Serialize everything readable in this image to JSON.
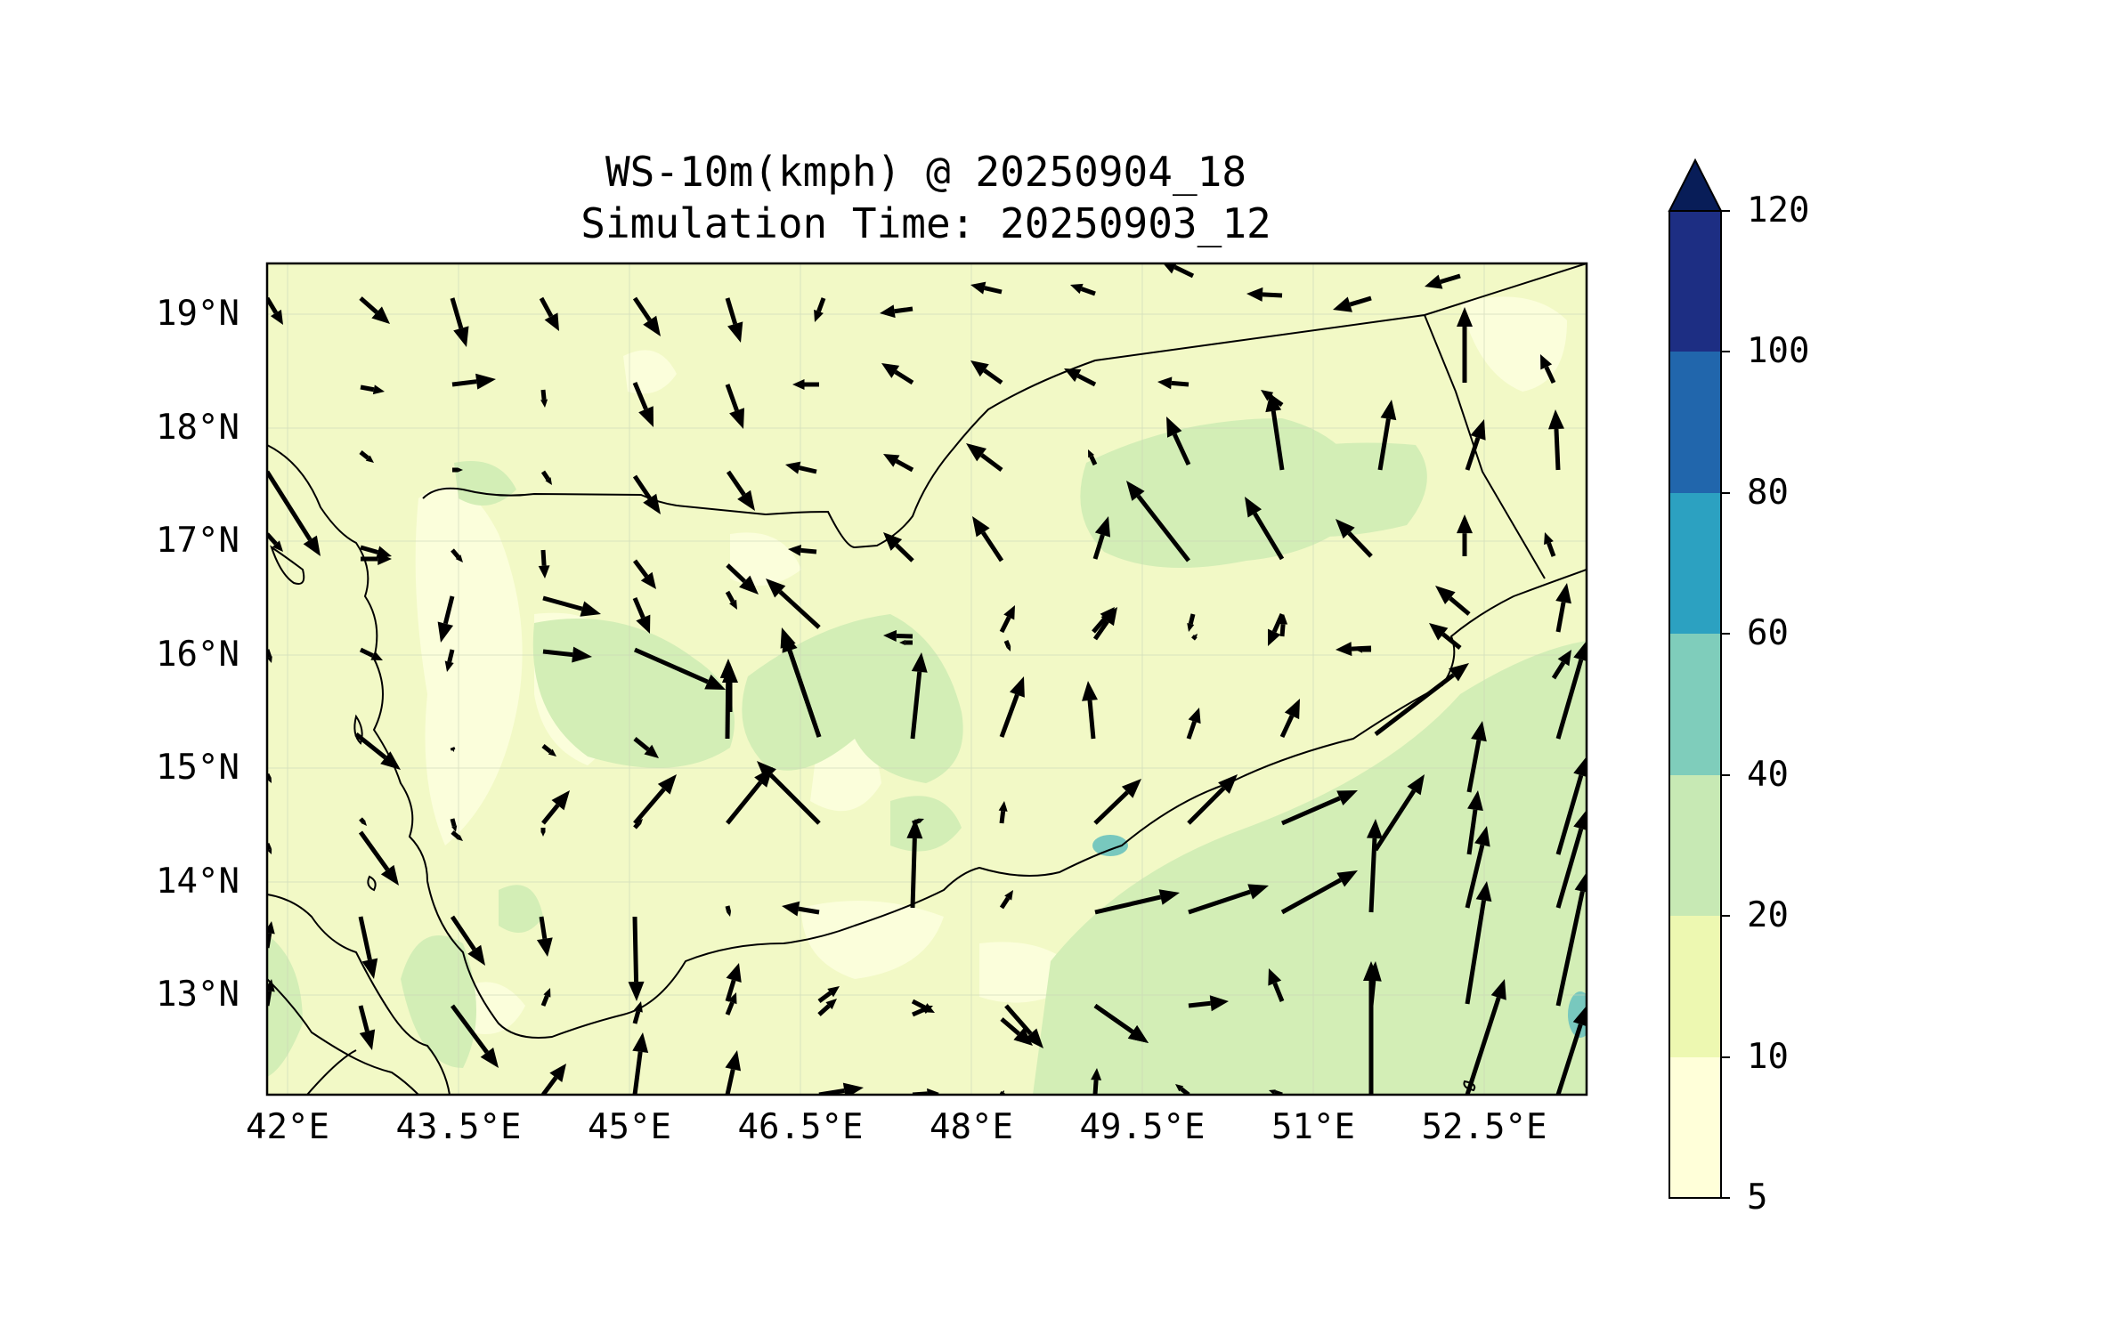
{
  "title": {
    "line1": "WS-10m(kmph) @ 20250904_18",
    "line2": "Simulation Time: 20250903_12"
  },
  "map": {
    "variable": "10 m wind speed",
    "units": "kmph",
    "lon_ticks": [
      "42°E",
      "43.5°E",
      "45°E",
      "46.5°E",
      "48°E",
      "49.5°E",
      "51°E",
      "52.5°E"
    ],
    "lat_ticks": [
      "19°N",
      "18°N",
      "17°N",
      "16°N",
      "15°N",
      "14°N",
      "13°N"
    ],
    "lon_range": [
      41.9,
      53.0
    ],
    "lat_range": [
      12.1,
      19.45
    ],
    "background_color": "#f2f9c6",
    "light_region_color": "#fbfedb",
    "moderate_region_color": "#d3eeb6",
    "strong_spot_color": "#78c8be",
    "coastline_color": "#000000",
    "wind_arrows_color": "#000000"
  },
  "colorbar": {
    "labels": [
      "120",
      "100",
      "80",
      "60",
      "40",
      "20",
      "10",
      "5"
    ],
    "levels": [
      5,
      10,
      20,
      40,
      60,
      80,
      100,
      120
    ],
    "colors": [
      "#ffffd9",
      "#edf8b1",
      "#c7e9b4",
      "#7fcdbb",
      "#2ca1c1",
      "#2166ac",
      "#1d2e83",
      "#081d58"
    ],
    "extend": "max"
  }
}
